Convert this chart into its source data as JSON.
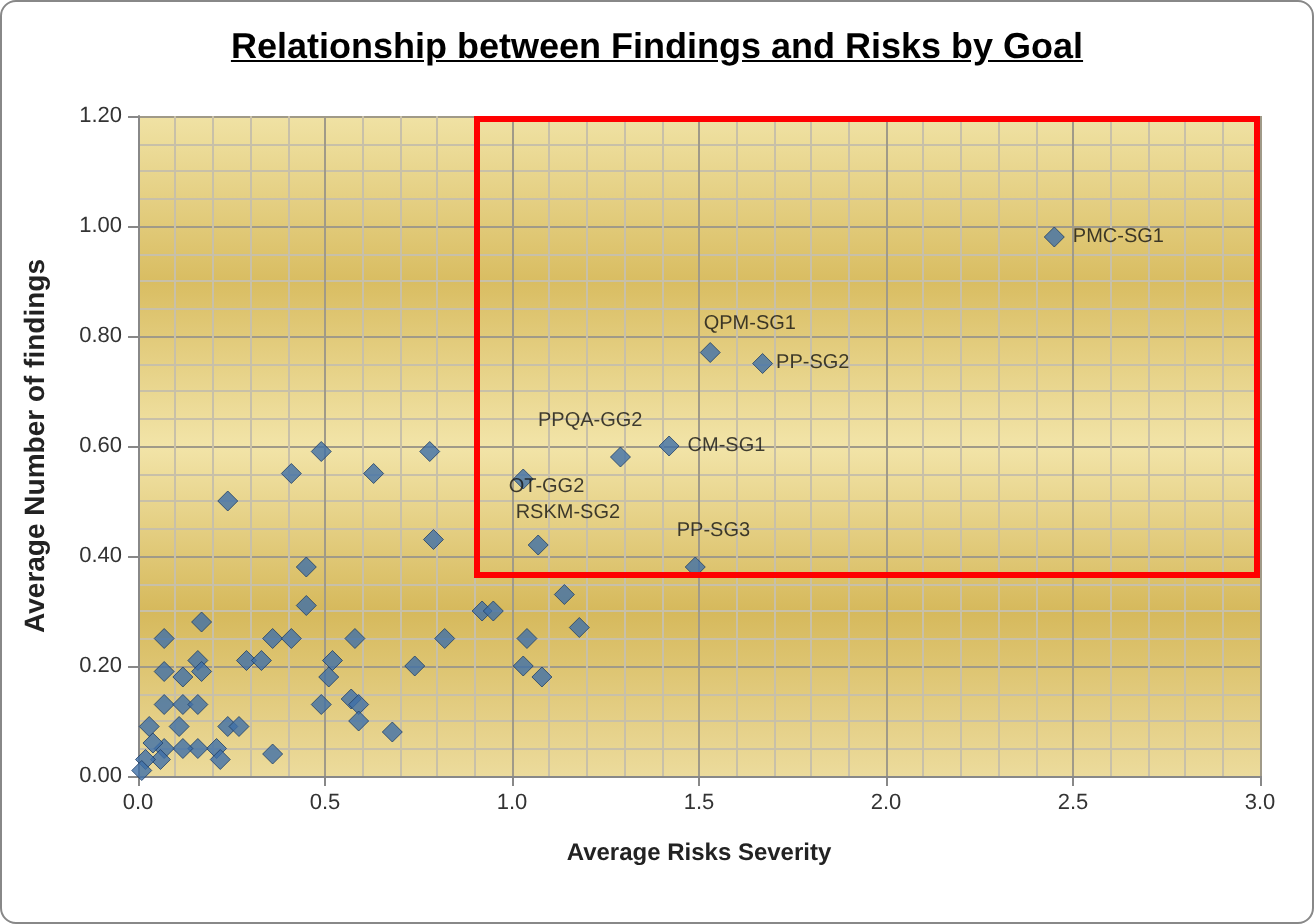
{
  "chart_data": {
    "type": "scatter",
    "title": "Relationship between Findings and Risks by Goal",
    "xlabel": "Average Risks Severity",
    "ylabel": "Average Number of findings",
    "x": [
      2.45,
      1.53,
      1.67,
      1.42,
      1.29,
      1.03,
      1.07,
      1.49,
      0.24,
      0.41,
      0.49,
      0.63,
      0.78,
      0.79,
      0.45,
      0.45,
      0.07,
      0.17,
      0.36,
      0.41,
      0.58,
      0.82,
      0.92,
      0.95,
      1.14,
      1.18,
      1.04,
      1.03,
      1.08,
      0.74,
      0.52,
      0.51,
      0.29,
      0.33,
      0.16,
      0.07,
      0.12,
      0.17,
      0.49,
      0.57,
      0.59,
      0.59,
      0.07,
      0.12,
      0.16,
      0.68,
      0.24,
      0.27,
      0.11,
      0.03,
      0.21,
      0.16,
      0.12,
      0.07,
      0.36,
      0.22,
      0.06,
      0.02,
      0.01,
      0.04
    ],
    "values": [
      0.98,
      0.77,
      0.75,
      0.6,
      0.58,
      0.54,
      0.42,
      0.38,
      0.5,
      0.55,
      0.59,
      0.55,
      0.59,
      0.43,
      0.38,
      0.31,
      0.25,
      0.28,
      0.25,
      0.25,
      0.25,
      0.25,
      0.3,
      0.3,
      0.33,
      0.27,
      0.25,
      0.2,
      0.18,
      0.2,
      0.21,
      0.18,
      0.21,
      0.21,
      0.21,
      0.19,
      0.18,
      0.19,
      0.13,
      0.14,
      0.13,
      0.1,
      0.13,
      0.13,
      0.13,
      0.08,
      0.09,
      0.09,
      0.09,
      0.09,
      0.05,
      0.05,
      0.05,
      0.05,
      0.04,
      0.03,
      0.03,
      0.03,
      0.01,
      0.06
    ],
    "value_labels": [
      "PMC-SG1",
      "QPM-SG1",
      "PP-SG2",
      "CM-SG1",
      "PPQA-GG2",
      "OT-GG2",
      "RSKM-SG2",
      "PP-SG3",
      null,
      null,
      null,
      null,
      null,
      null,
      null,
      null,
      null,
      null,
      null,
      null,
      null,
      null,
      null,
      null,
      null,
      null,
      null,
      null,
      null,
      null,
      null,
      null,
      null,
      null,
      null,
      null,
      null,
      null,
      null,
      null,
      null,
      null,
      null,
      null,
      null,
      null,
      null,
      null,
      null,
      null,
      null,
      null,
      null,
      null,
      null,
      null,
      null,
      null,
      null,
      null
    ],
    "color": "#3f6fa8",
    "marker": "diamond",
    "grid": true,
    "xlim": [
      0,
      3
    ],
    "xticks": [
      {
        "value": 0,
        "label": "0.0"
      },
      0.5,
      {
        "value": 1,
        "label": "1.0"
      },
      1.5,
      {
        "value": 2,
        "label": "2.0"
      },
      2.5,
      {
        "value": 3,
        "label": "3.0"
      }
    ],
    "ylim": [
      0,
      1.2
    ],
    "yticks": [
      {
        "value": 0,
        "label": "0.00"
      },
      {
        "value": 0.2,
        "label": "0.20"
      },
      {
        "value": 0.4,
        "label": "0.40"
      },
      {
        "value": 0.6,
        "label": "0.60"
      },
      {
        "value": 0.8,
        "label": "0.80"
      },
      {
        "value": 1,
        "label": "1.00"
      },
      {
        "value": 1.2,
        "label": "1.20"
      }
    ]
  }
}
